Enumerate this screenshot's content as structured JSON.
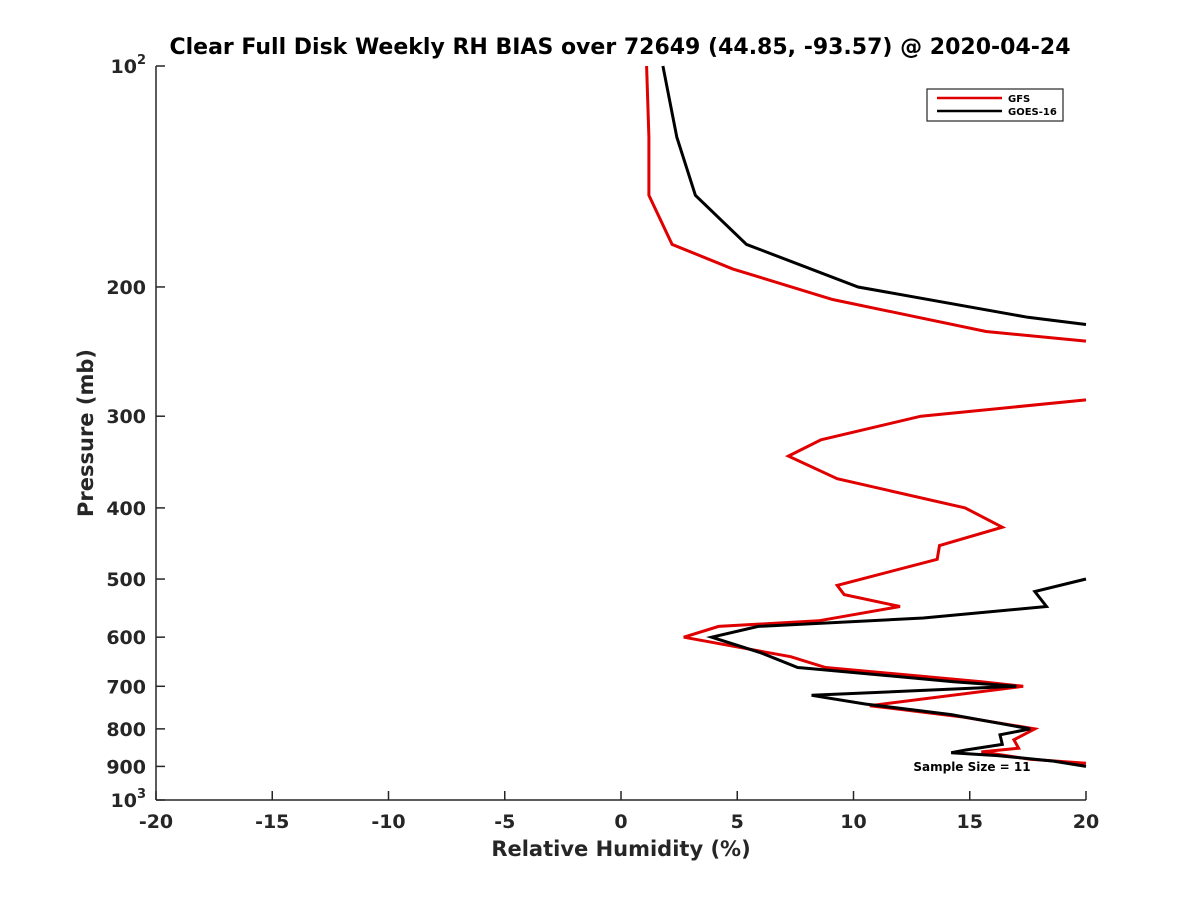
{
  "chart_data": {
    "type": "line",
    "title": "Clear Full Disk Weekly RH BIAS over 72649 (44.85, -93.57) @ 2020-04-24",
    "xlabel": "Relative Humidity (%)",
    "ylabel": "Pressure (mb)",
    "xlim": [
      -20,
      20
    ],
    "ylim": [
      100,
      1000
    ],
    "y_scale": "log",
    "y_reversed": true,
    "grid": false,
    "legend_position": "top-right",
    "x_ticks": [
      -20,
      -15,
      -10,
      -5,
      0,
      5,
      10,
      15,
      20
    ],
    "y_ticks": [
      {
        "value": 100,
        "label": "10",
        "exp": "2"
      },
      {
        "value": 200,
        "label": "200"
      },
      {
        "value": 300,
        "label": "300"
      },
      {
        "value": 400,
        "label": "400"
      },
      {
        "value": 500,
        "label": "500"
      },
      {
        "value": 600,
        "label": "600"
      },
      {
        "value": 700,
        "label": "700"
      },
      {
        "value": 800,
        "label": "800"
      },
      {
        "value": 900,
        "label": "900"
      },
      {
        "value": 1000,
        "label": "10",
        "exp": "3"
      }
    ],
    "annotation": "Sample Size = 11",
    "series": [
      {
        "name": "GFS",
        "color": "#e00000",
        "points": [
          [
            1.1,
            100
          ],
          [
            1.2,
            125
          ],
          [
            1.2,
            150
          ],
          [
            2.2,
            175
          ],
          [
            4.8,
            189
          ],
          [
            9.1,
            208
          ],
          [
            15.7,
            230
          ],
          [
            20,
            237
          ],
          [
            null,
            null
          ],
          [
            20,
            285
          ],
          [
            12.9,
            300
          ],
          [
            8.6,
            323
          ],
          [
            7.2,
            340
          ],
          [
            9.3,
            365
          ],
          [
            14.8,
            400
          ],
          [
            16.4,
            425
          ],
          [
            13.7,
            450
          ],
          [
            13.6,
            470
          ],
          [
            9.3,
            510
          ],
          [
            9.6,
            525
          ],
          [
            12.0,
            545
          ],
          [
            8.5,
            570
          ],
          [
            4.2,
            580
          ],
          [
            2.7,
            600
          ],
          [
            7.3,
            638
          ],
          [
            8.8,
            660
          ],
          [
            15.5,
            690
          ],
          [
            17.3,
            700
          ],
          [
            10.7,
            744
          ],
          [
            14.6,
            770
          ],
          [
            17.8,
            800
          ],
          [
            16.9,
            828
          ],
          [
            17.1,
            850
          ],
          [
            15.5,
            860
          ],
          [
            17.6,
            880
          ],
          [
            20,
            891
          ]
        ]
      },
      {
        "name": "GOES-16",
        "color": "#000000",
        "points": [
          [
            1.8,
            100
          ],
          [
            2.4,
            125
          ],
          [
            3.2,
            150
          ],
          [
            5.4,
            175
          ],
          [
            10.2,
            200
          ],
          [
            17.5,
            220
          ],
          [
            20,
            225
          ],
          [
            null,
            null
          ],
          [
            20,
            500
          ],
          [
            17.8,
            520
          ],
          [
            18.3,
            545
          ],
          [
            13.0,
            565
          ],
          [
            5.9,
            580
          ],
          [
            3.9,
            600
          ],
          [
            6.0,
            630
          ],
          [
            7.6,
            660
          ],
          [
            8.1,
            662
          ],
          [
            14.3,
            690
          ],
          [
            17.0,
            700
          ],
          [
            8.2,
            720
          ],
          [
            10.5,
            740
          ],
          [
            14.2,
            765
          ],
          [
            17.6,
            800
          ],
          [
            16.3,
            815
          ],
          [
            16.4,
            840
          ],
          [
            14.8,
            855
          ],
          [
            14.2,
            862
          ],
          [
            16.2,
            870
          ],
          [
            18.6,
            885
          ],
          [
            20,
            900
          ]
        ]
      }
    ]
  }
}
